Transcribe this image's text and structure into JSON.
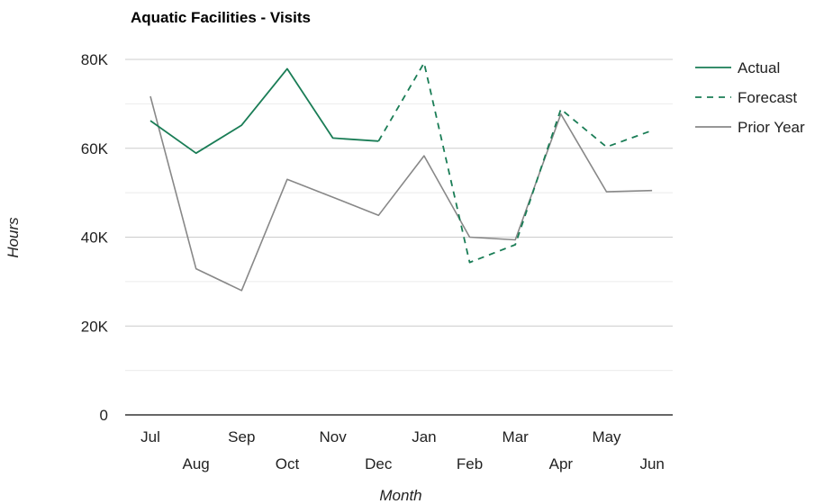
{
  "chart_data": {
    "type": "line",
    "title": "Aquatic Facilities - Visits",
    "xlabel": "Month",
    "ylabel": "Hours",
    "categories": [
      "Jul",
      "Aug",
      "Sep",
      "Oct",
      "Nov",
      "Dec",
      "Jan",
      "Feb",
      "Mar",
      "Apr",
      "May",
      "Jun"
    ],
    "ylim": [
      0,
      80000
    ],
    "yticks": [
      {
        "value": 0,
        "label": "0"
      },
      {
        "value": 20000,
        "label": "20K"
      },
      {
        "value": 40000,
        "label": "40K"
      },
      {
        "value": 60000,
        "label": "60K"
      },
      {
        "value": 80000,
        "label": "80K"
      }
    ],
    "minor_gridlines": [
      10000,
      30000,
      50000,
      70000
    ],
    "grid": true,
    "legend_position": "right",
    "series": [
      {
        "name": "Actual",
        "color": "#1a7d56",
        "dash": "solid",
        "values": [
          66200,
          58900,
          65200,
          77900,
          62300,
          61600,
          null,
          null,
          null,
          null,
          null,
          null
        ]
      },
      {
        "name": "Forecast",
        "color": "#1a7d56",
        "dash": "dashed",
        "values": [
          null,
          null,
          null,
          null,
          null,
          61600,
          79200,
          34300,
          38300,
          68800,
          60300,
          64000
        ]
      },
      {
        "name": "Prior Year",
        "color": "#888888",
        "dash": "solid",
        "values": [
          71700,
          32900,
          28000,
          53000,
          49000,
          44900,
          58300,
          40000,
          39400,
          67700,
          50200,
          50500
        ]
      }
    ]
  }
}
